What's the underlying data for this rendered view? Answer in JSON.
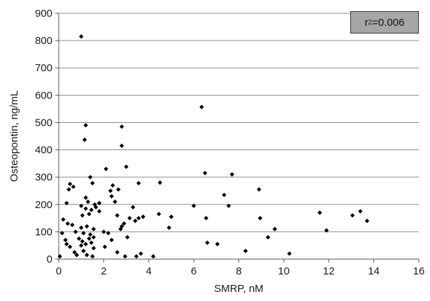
{
  "chart_data": {
    "type": "scatter",
    "title": "",
    "xlabel": "SMRP, nM",
    "ylabel": "Osteopontin, ng/mL",
    "xlim": [
      0,
      16
    ],
    "ylim": [
      0,
      900
    ],
    "x_ticks": [
      0,
      2,
      4,
      6,
      8,
      10,
      12,
      14,
      16
    ],
    "y_ticks": [
      0,
      100,
      200,
      300,
      400,
      500,
      600,
      700,
      800,
      900
    ],
    "grid": "horizontal",
    "marker_color": "#000000",
    "annotation": {
      "prefix": "r",
      "sup": "2",
      "value": "=0.006"
    },
    "points": [
      [
        1.0,
        815
      ],
      [
        6.35,
        557
      ],
      [
        1.2,
        490
      ],
      [
        2.8,
        485
      ],
      [
        1.15,
        437
      ],
      [
        2.8,
        415
      ],
      [
        3.0,
        338
      ],
      [
        2.1,
        330
      ],
      [
        6.5,
        315
      ],
      [
        1.4,
        300
      ],
      [
        7.7,
        310
      ],
      [
        0.5,
        275
      ],
      [
        0.65,
        265
      ],
      [
        1.5,
        278
      ],
      [
        2.4,
        270
      ],
      [
        3.55,
        278
      ],
      [
        4.5,
        280
      ],
      [
        0.45,
        255
      ],
      [
        2.3,
        250
      ],
      [
        2.65,
        255
      ],
      [
        7.35,
        235
      ],
      [
        8.9,
        255
      ],
      [
        1.2,
        225
      ],
      [
        2.35,
        230
      ],
      [
        0.35,
        205
      ],
      [
        1.3,
        210
      ],
      [
        1.6,
        200
      ],
      [
        1.8,
        205
      ],
      [
        2.5,
        210
      ],
      [
        1.0,
        195
      ],
      [
        1.2,
        185
      ],
      [
        1.45,
        180
      ],
      [
        1.65,
        190
      ],
      [
        3.3,
        190
      ],
      [
        6.0,
        195
      ],
      [
        7.55,
        195
      ],
      [
        0.2,
        145
      ],
      [
        0.4,
        130
      ],
      [
        1.05,
        160
      ],
      [
        1.35,
        165
      ],
      [
        1.8,
        175
      ],
      [
        2.6,
        160
      ],
      [
        3.15,
        150
      ],
      [
        3.55,
        150
      ],
      [
        3.75,
        155
      ],
      [
        4.45,
        165
      ],
      [
        5.0,
        155
      ],
      [
        6.55,
        150
      ],
      [
        8.95,
        150
      ],
      [
        11.6,
        170
      ],
      [
        13.4,
        175
      ],
      [
        13.05,
        160
      ],
      [
        13.7,
        140
      ],
      [
        0.6,
        125
      ],
      [
        1.0,
        115
      ],
      [
        1.25,
        120
      ],
      [
        1.55,
        110
      ],
      [
        2.0,
        100
      ],
      [
        2.8,
        120
      ],
      [
        2.9,
        130
      ],
      [
        3.4,
        140
      ],
      [
        4.9,
        115
      ],
      [
        9.6,
        110
      ],
      [
        11.9,
        105
      ],
      [
        0.15,
        95
      ],
      [
        0.75,
        100
      ],
      [
        1.1,
        95
      ],
      [
        1.4,
        90
      ],
      [
        2.2,
        95
      ],
      [
        2.75,
        110
      ],
      [
        0.3,
        70
      ],
      [
        0.9,
        75
      ],
      [
        1.05,
        65
      ],
      [
        1.35,
        75
      ],
      [
        1.55,
        80
      ],
      [
        2.35,
        70
      ],
      [
        3.05,
        80
      ],
      [
        9.3,
        80
      ],
      [
        0.35,
        55
      ],
      [
        0.5,
        45
      ],
      [
        1.0,
        50
      ],
      [
        1.2,
        55
      ],
      [
        1.45,
        60
      ],
      [
        2.05,
        45
      ],
      [
        6.6,
        60
      ],
      [
        7.05,
        55
      ],
      [
        0.7,
        25
      ],
      [
        1.1,
        30
      ],
      [
        1.55,
        40
      ],
      [
        2.6,
        25
      ],
      [
        8.3,
        30
      ],
      [
        0.05,
        10
      ],
      [
        0.8,
        15
      ],
      [
        1.25,
        15
      ],
      [
        1.5,
        10
      ],
      [
        2.95,
        10
      ],
      [
        3.45,
        10
      ],
      [
        3.65,
        20
      ],
      [
        4.2,
        10
      ],
      [
        10.25,
        20
      ]
    ]
  }
}
